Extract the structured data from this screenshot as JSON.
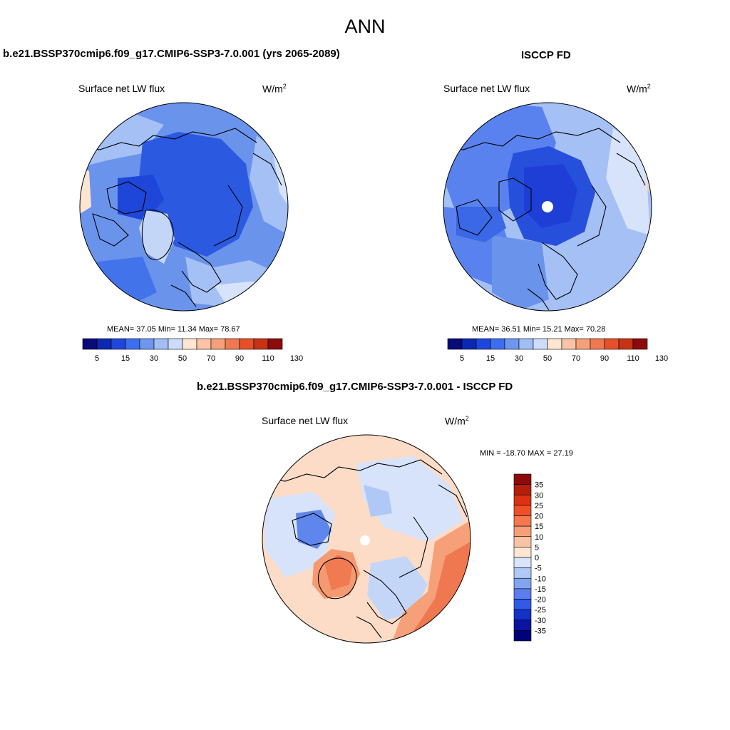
{
  "page_title": "ANN",
  "units": {
    "base": "W/m",
    "exp": "2"
  },
  "panels": {
    "model": {
      "title": "b.e21.BSSP370cmip6.f09_g17.CMIP6-SSP3-7.0.001 (yrs 2065-2089)",
      "variable": "Surface net LW flux",
      "stats": "MEAN=  37.05  Min=  11.34  Max=  78.67"
    },
    "obs": {
      "title": "ISCCP FD",
      "variable": "Surface net LW flux",
      "stats": "MEAN=  36.51  Min=  15.21  Max=  70.28"
    },
    "diff": {
      "title": "b.e21.BSSP370cmip6.f09_g17.CMIP6-SSP3-7.0.001 - ISCCP FD",
      "variable": "Surface net LW flux",
      "stats": "MIN = -18.70 MAX =  27.19"
    }
  },
  "colorbars": {
    "field": {
      "labels": [
        "5",
        "15",
        "30",
        "50",
        "70",
        "90",
        "110",
        "130"
      ],
      "colors": [
        "#0a0a78",
        "#0a28b4",
        "#1e46dc",
        "#3c6ef0",
        "#6e96f0",
        "#a0bef5",
        "#cddcfa",
        "#ffe6d2",
        "#fac3a5",
        "#f5a078",
        "#f07850",
        "#e65028",
        "#c83214",
        "#8c0a0a"
      ]
    },
    "diff": {
      "labels": [
        "35",
        "30",
        "25",
        "20",
        "15",
        "10",
        "5",
        "0",
        "-5",
        "-10",
        "-15",
        "-20",
        "-25",
        "-30",
        "-35"
      ],
      "colors": [
        "#8c0a0a",
        "#b41e0a",
        "#dc3214",
        "#f05028",
        "#f57850",
        "#f5a078",
        "#fac3a5",
        "#ffe6d2",
        "#d7e6fa",
        "#afc8f5",
        "#82a5f0",
        "#5a7df0",
        "#325ae6",
        "#1432c8",
        "#0a14a0",
        "#00007a"
      ]
    }
  }
}
